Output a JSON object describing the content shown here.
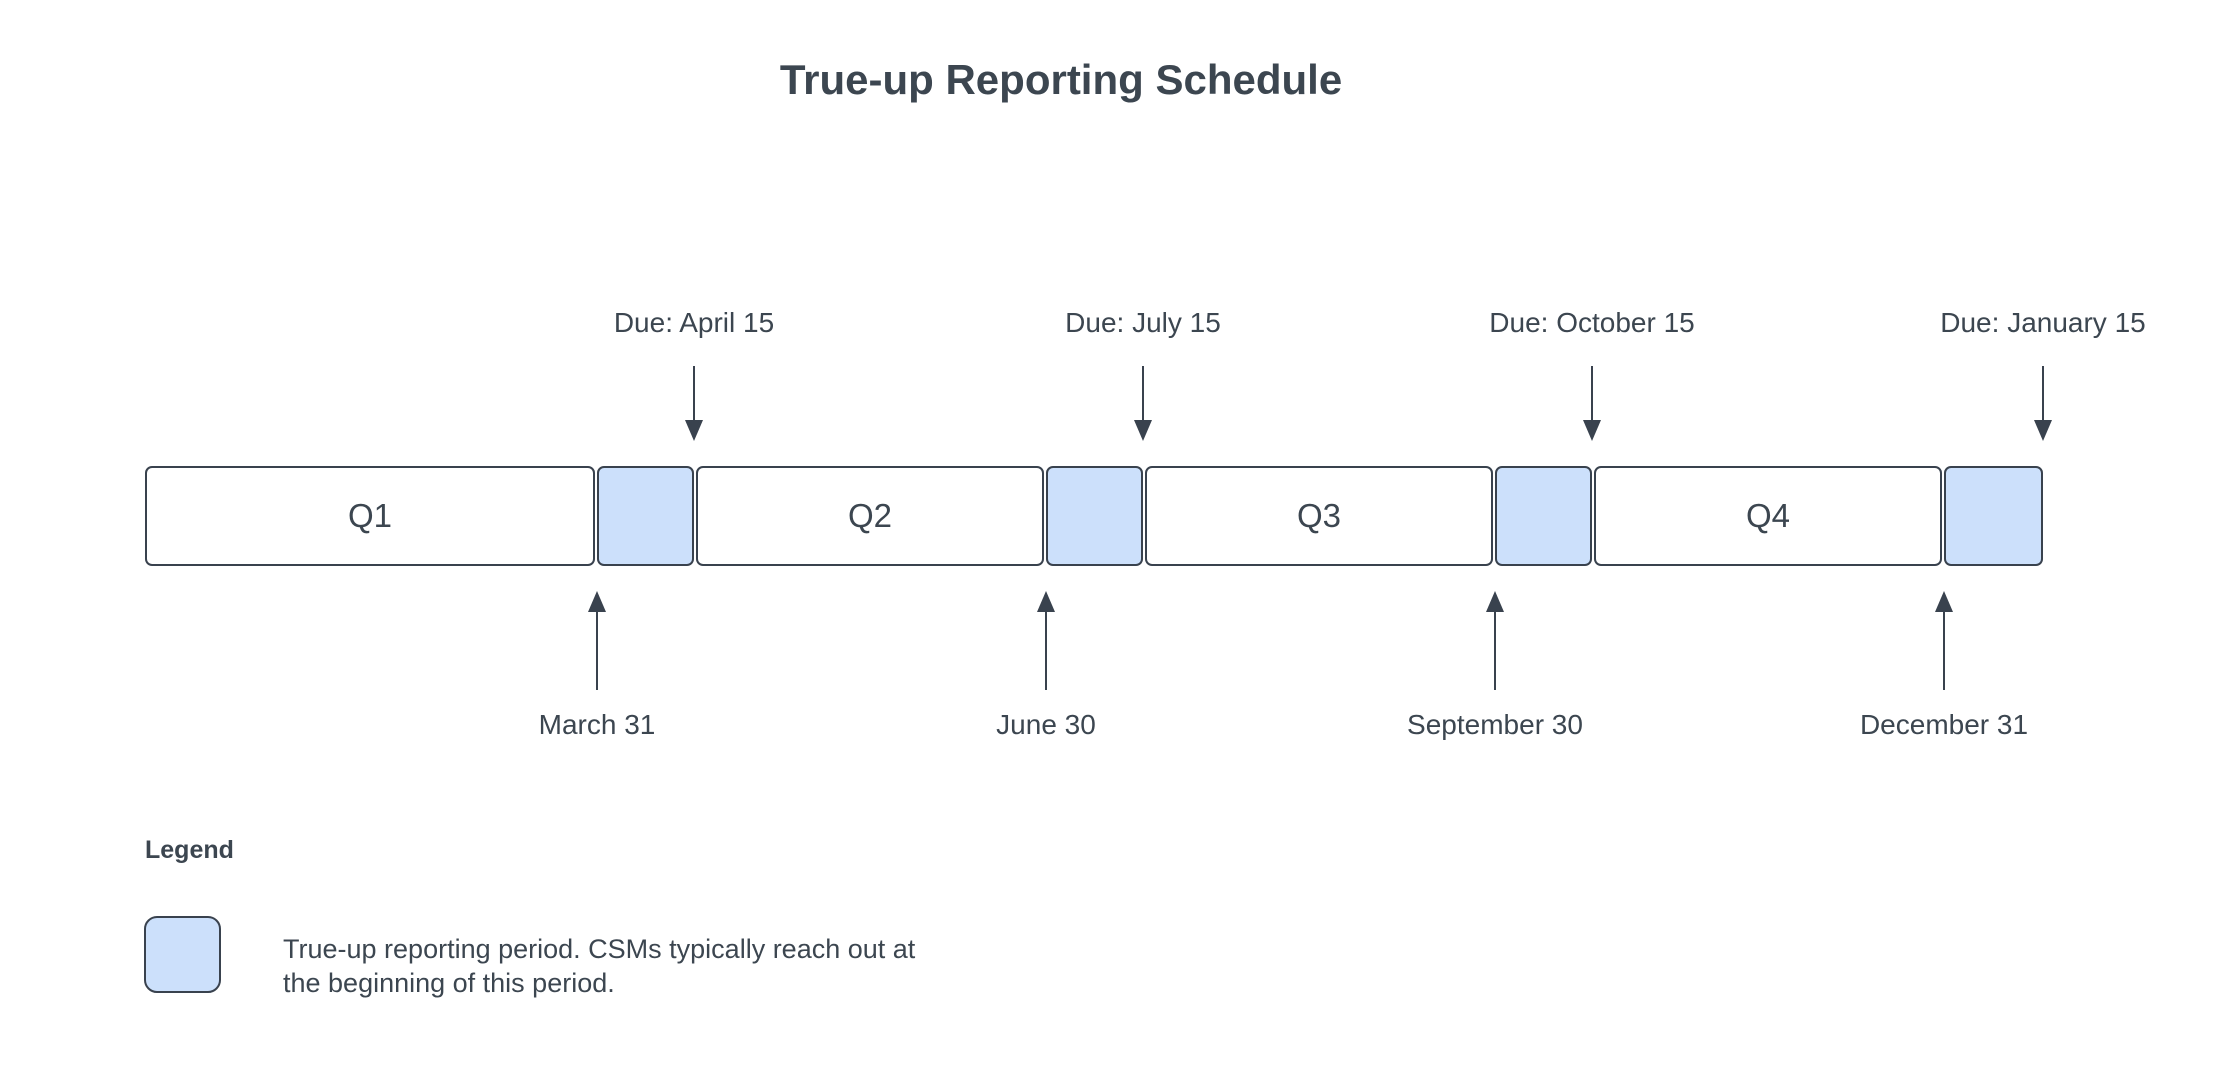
{
  "title": "True-up Reporting Schedule",
  "colors": {
    "period_fill": "#cce0fb",
    "stroke": "#39424e",
    "text": "#3c4650"
  },
  "timeline": {
    "quarters": [
      "Q1",
      "Q2",
      "Q3",
      "Q4"
    ],
    "markers": [
      {
        "due_label": "Due: April 15",
        "period_end_label": "March 31"
      },
      {
        "due_label": "Due: July 15",
        "period_end_label": "June 30"
      },
      {
        "due_label": "Due: October 15",
        "period_end_label": "September 30"
      },
      {
        "due_label": "Due: January 15",
        "period_end_label": "December 31"
      }
    ]
  },
  "legend": {
    "heading": "Legend",
    "swatch_meaning": "true-up-reporting-period",
    "description_line1": "True-up reporting period. CSMs typically reach out at",
    "description_line2": "the beginning of this period."
  }
}
